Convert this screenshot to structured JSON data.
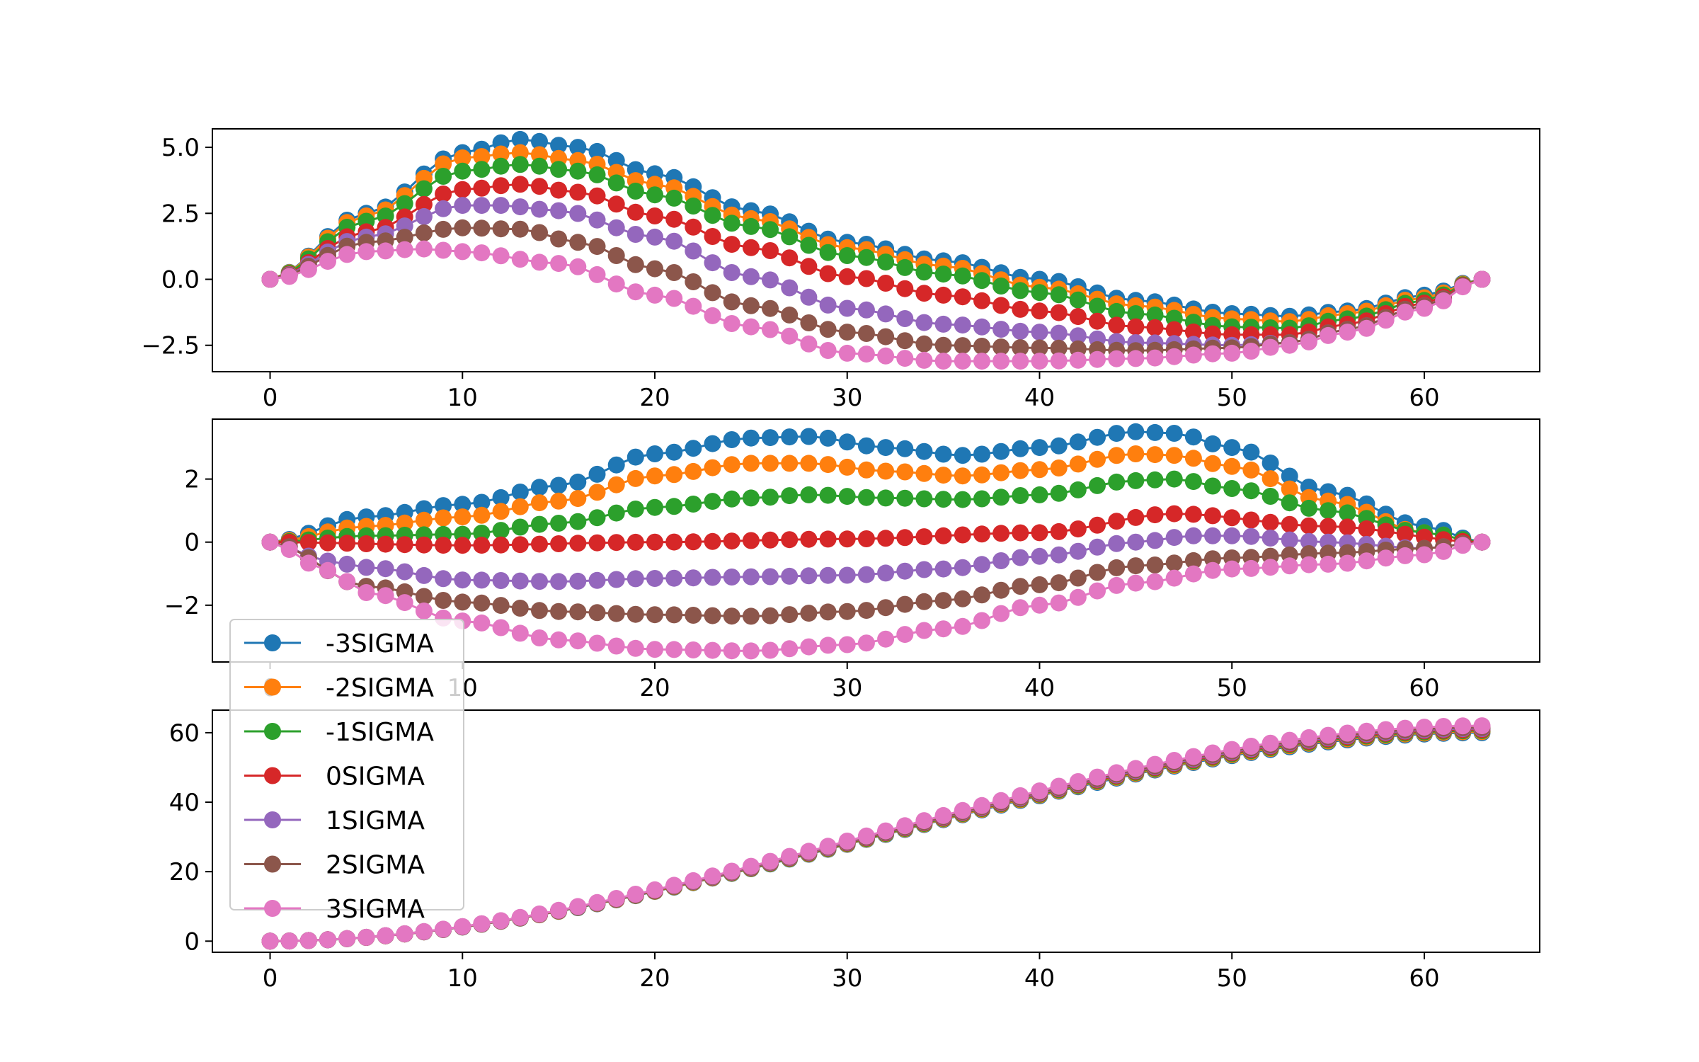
{
  "chart_data": [
    {
      "type": "line",
      "title": "",
      "xlabel": "",
      "ylabel": "",
      "xlim": [
        -3,
        66
      ],
      "ylim": [
        -3.5,
        5.7
      ],
      "xticks": [
        0,
        10,
        20,
        30,
        40,
        50,
        60
      ],
      "yticks": [
        -2.5,
        0.0,
        2.5,
        5.0
      ],
      "ytick_labels": [
        "−2.5",
        "0.0",
        "2.5",
        "5.0"
      ],
      "grid": false,
      "x": "0..63 (step 1)",
      "series": [
        {
          "name": "-3SIGMA",
          "color": "#1f77b4",
          "points": [
            [
              0,
              0
            ],
            [
              5,
              2.5
            ],
            [
              10,
              4.8
            ],
            [
              13,
              5.3
            ],
            [
              16,
              5.0
            ],
            [
              20,
              4.0
            ],
            [
              25,
              2.6
            ],
            [
              30,
              1.4
            ],
            [
              35,
              0.7
            ],
            [
              40,
              0.0
            ],
            [
              45,
              -0.8
            ],
            [
              50,
              -1.3
            ],
            [
              53,
              -1.4
            ],
            [
              56,
              -1.2
            ],
            [
              60,
              -0.6
            ],
            [
              63,
              0
            ]
          ]
        },
        {
          "name": "-2SIGMA",
          "color": "#ff7f0e",
          "points": [
            [
              0,
              0
            ],
            [
              5,
              2.4
            ],
            [
              10,
              4.6
            ],
            [
              13,
              4.8
            ],
            [
              16,
              4.5
            ],
            [
              20,
              3.6
            ],
            [
              25,
              2.3
            ],
            [
              30,
              1.2
            ],
            [
              35,
              0.5
            ],
            [
              40,
              -0.3
            ],
            [
              45,
              -1.0
            ],
            [
              50,
              -1.5
            ],
            [
              53,
              -1.6
            ],
            [
              56,
              -1.3
            ],
            [
              60,
              -0.7
            ],
            [
              63,
              0
            ]
          ]
        },
        {
          "name": "-1SIGMA",
          "color": "#2ca02c",
          "points": [
            [
              0,
              0
            ],
            [
              5,
              2.2
            ],
            [
              10,
              4.1
            ],
            [
              13,
              4.35
            ],
            [
              16,
              4.1
            ],
            [
              20,
              3.2
            ],
            [
              25,
              2.0
            ],
            [
              30,
              0.9
            ],
            [
              35,
              0.2
            ],
            [
              40,
              -0.5
            ],
            [
              45,
              -1.3
            ],
            [
              50,
              -1.8
            ],
            [
              53,
              -1.85
            ],
            [
              56,
              -1.5
            ],
            [
              60,
              -0.8
            ],
            [
              63,
              0
            ]
          ]
        },
        {
          "name": "0SIGMA",
          "color": "#d62728",
          "points": [
            [
              0,
              0
            ],
            [
              5,
              1.8
            ],
            [
              10,
              3.4
            ],
            [
              13,
              3.6
            ],
            [
              16,
              3.3
            ],
            [
              20,
              2.4
            ],
            [
              25,
              1.2
            ],
            [
              30,
              0.1
            ],
            [
              35,
              -0.6
            ],
            [
              40,
              -1.2
            ],
            [
              45,
              -1.8
            ],
            [
              50,
              -2.1
            ],
            [
              53,
              -2.1
            ],
            [
              56,
              -1.7
            ],
            [
              60,
              -0.9
            ],
            [
              63,
              0
            ]
          ]
        },
        {
          "name": "1SIGMA",
          "color": "#9467bd",
          "points": [
            [
              0,
              0
            ],
            [
              5,
              1.6
            ],
            [
              10,
              2.8
            ],
            [
              12,
              2.8
            ],
            [
              15,
              2.6
            ],
            [
              20,
              1.6
            ],
            [
              25,
              0.1
            ],
            [
              30,
              -1.1
            ],
            [
              35,
              -1.7
            ],
            [
              40,
              -2.0
            ],
            [
              45,
              -2.4
            ],
            [
              50,
              -2.5
            ],
            [
              53,
              -2.4
            ],
            [
              56,
              -1.9
            ],
            [
              60,
              -1.0
            ],
            [
              63,
              0
            ]
          ]
        },
        {
          "name": "2SIGMA",
          "color": "#8c564b",
          "points": [
            [
              0,
              0
            ],
            [
              5,
              1.4
            ],
            [
              10,
              1.95
            ],
            [
              13,
              1.9
            ],
            [
              16,
              1.4
            ],
            [
              20,
              0.4
            ],
            [
              25,
              -1.0
            ],
            [
              30,
              -2.0
            ],
            [
              35,
              -2.5
            ],
            [
              40,
              -2.6
            ],
            [
              45,
              -2.7
            ],
            [
              50,
              -2.6
            ],
            [
              53,
              -2.4
            ],
            [
              56,
              -1.9
            ],
            [
              60,
              -1.0
            ],
            [
              63,
              0
            ]
          ]
        },
        {
          "name": "3SIGMA",
          "color": "#e377c2",
          "points": [
            [
              0,
              0
            ],
            [
              5,
              1.05
            ],
            [
              8,
              1.15
            ],
            [
              10,
              1.05
            ],
            [
              15,
              0.6
            ],
            [
              20,
              -0.6
            ],
            [
              25,
              -1.8
            ],
            [
              30,
              -2.8
            ],
            [
              35,
              -3.1
            ],
            [
              40,
              -3.1
            ],
            [
              45,
              -3.0
            ],
            [
              50,
              -2.8
            ],
            [
              53,
              -2.5
            ],
            [
              56,
              -2.0
            ],
            [
              60,
              -1.1
            ],
            [
              63,
              0
            ]
          ]
        }
      ]
    },
    {
      "type": "line",
      "title": "",
      "xlabel": "",
      "ylabel": "",
      "xlim": [
        -3,
        66
      ],
      "ylim": [
        -3.8,
        3.9
      ],
      "xticks": [
        0,
        10,
        20,
        30,
        40,
        50,
        60
      ],
      "yticks": [
        -2,
        0,
        2
      ],
      "ytick_labels": [
        "−2",
        "0",
        "2"
      ],
      "grid": false,
      "x": "0..63 (step 1)",
      "series": [
        {
          "name": "-3SIGMA",
          "color": "#1f77b4",
          "points": [
            [
              0,
              0
            ],
            [
              5,
              0.8
            ],
            [
              10,
              1.2
            ],
            [
              15,
              1.8
            ],
            [
              20,
              2.8
            ],
            [
              25,
              3.3
            ],
            [
              28,
              3.35
            ],
            [
              32,
              3.0
            ],
            [
              36,
              2.75
            ],
            [
              40,
              3.0
            ],
            [
              45,
              3.5
            ],
            [
              47,
              3.45
            ],
            [
              50,
              3.0
            ],
            [
              55,
              1.6
            ],
            [
              60,
              0.5
            ],
            [
              63,
              0
            ]
          ]
        },
        {
          "name": "-2SIGMA",
          "color": "#ff7f0e",
          "points": [
            [
              0,
              0
            ],
            [
              5,
              0.5
            ],
            [
              10,
              0.8
            ],
            [
              15,
              1.3
            ],
            [
              20,
              2.1
            ],
            [
              25,
              2.5
            ],
            [
              28,
              2.5
            ],
            [
              32,
              2.25
            ],
            [
              36,
              2.1
            ],
            [
              40,
              2.3
            ],
            [
              45,
              2.8
            ],
            [
              47,
              2.75
            ],
            [
              50,
              2.4
            ],
            [
              55,
              1.3
            ],
            [
              60,
              0.3
            ],
            [
              63,
              0
            ]
          ]
        },
        {
          "name": "-1SIGMA",
          "color": "#2ca02c",
          "points": [
            [
              0,
              0
            ],
            [
              5,
              0.2
            ],
            [
              10,
              0.25
            ],
            [
              15,
              0.6
            ],
            [
              20,
              1.1
            ],
            [
              25,
              1.4
            ],
            [
              28,
              1.5
            ],
            [
              32,
              1.4
            ],
            [
              36,
              1.35
            ],
            [
              40,
              1.5
            ],
            [
              45,
              1.95
            ],
            [
              47,
              2.0
            ],
            [
              50,
              1.7
            ],
            [
              55,
              1.0
            ],
            [
              60,
              0.3
            ],
            [
              63,
              0
            ]
          ]
        },
        {
          "name": "0SIGMA",
          "color": "#d62728",
          "points": [
            [
              0,
              0
            ],
            [
              10,
              -0.1
            ],
            [
              20,
              0.0
            ],
            [
              30,
              0.1
            ],
            [
              40,
              0.3
            ],
            [
              47,
              0.9
            ],
            [
              55,
              0.5
            ],
            [
              63,
              0
            ]
          ]
        },
        {
          "name": "1SIGMA",
          "color": "#9467bd",
          "points": [
            [
              0,
              0
            ],
            [
              3,
              -0.6
            ],
            [
              5,
              -0.8
            ],
            [
              10,
              -1.2
            ],
            [
              15,
              -1.25
            ],
            [
              20,
              -1.15
            ],
            [
              25,
              -1.1
            ],
            [
              30,
              -1.05
            ],
            [
              35,
              -0.85
            ],
            [
              40,
              -0.45
            ],
            [
              45,
              0.0
            ],
            [
              48,
              0.2
            ],
            [
              50,
              0.2
            ],
            [
              55,
              0.0
            ],
            [
              60,
              -0.2
            ],
            [
              63,
              0
            ]
          ]
        },
        {
          "name": "2SIGMA",
          "color": "#8c564b",
          "points": [
            [
              0,
              0
            ],
            [
              5,
              -1.4
            ],
            [
              10,
              -1.9
            ],
            [
              15,
              -2.2
            ],
            [
              20,
              -2.3
            ],
            [
              25,
              -2.35
            ],
            [
              30,
              -2.2
            ],
            [
              35,
              -1.85
            ],
            [
              40,
              -1.35
            ],
            [
              45,
              -0.75
            ],
            [
              50,
              -0.5
            ],
            [
              55,
              -0.35
            ],
            [
              60,
              -0.2
            ],
            [
              63,
              0
            ]
          ]
        },
        {
          "name": "3SIGMA",
          "color": "#e377c2",
          "points": [
            [
              0,
              0
            ],
            [
              3,
              -0.9
            ],
            [
              5,
              -1.6
            ],
            [
              10,
              -2.5
            ],
            [
              15,
              -3.1
            ],
            [
              20,
              -3.4
            ],
            [
              25,
              -3.45
            ],
            [
              30,
              -3.25
            ],
            [
              35,
              -2.75
            ],
            [
              40,
              -2.0
            ],
            [
              45,
              -1.3
            ],
            [
              50,
              -0.85
            ],
            [
              55,
              -0.7
            ],
            [
              60,
              -0.4
            ],
            [
              63,
              0
            ]
          ]
        }
      ]
    },
    {
      "type": "line",
      "title": "",
      "xlabel": "",
      "ylabel": "",
      "xlim": [
        -3,
        66
      ],
      "ylim": [
        -3.2,
        66.5
      ],
      "xticks": [
        0,
        10,
        20,
        30,
        40,
        50,
        60
      ],
      "yticks": [
        0,
        20,
        40,
        60
      ],
      "ytick_labels": [
        "0",
        "20",
        "40",
        "60"
      ],
      "grid": false,
      "x": "0..63 (step 1)",
      "series": [
        {
          "name": "-3SIGMA",
          "color": "#1f77b4",
          "points": [
            [
              0,
              0
            ],
            [
              63,
              60.0
            ]
          ]
        },
        {
          "name": "-2SIGMA",
          "color": "#ff7f0e",
          "points": [
            [
              0,
              0
            ],
            [
              63,
              60.3
            ]
          ]
        },
        {
          "name": "-1SIGMA",
          "color": "#2ca02c",
          "points": [
            [
              0,
              0
            ],
            [
              63,
              60.6
            ]
          ]
        },
        {
          "name": "0SIGMA",
          "color": "#d62728",
          "points": [
            [
              0,
              0
            ],
            [
              63,
              60.9
            ]
          ]
        },
        {
          "name": "1SIGMA",
          "color": "#9467bd",
          "points": [
            [
              0,
              0
            ],
            [
              63,
              61.2
            ]
          ]
        },
        {
          "name": "2SIGMA",
          "color": "#8c564b",
          "points": [
            [
              0,
              0
            ],
            [
              63,
              61.5
            ]
          ]
        },
        {
          "name": "3SIGMA",
          "color": "#e377c2",
          "points": [
            [
              0,
              0
            ],
            [
              63,
              62.0
            ]
          ]
        }
      ]
    }
  ],
  "legend": {
    "placement": "lower-left",
    "entries": [
      {
        "label": "-3SIGMA",
        "color": "#1f77b4"
      },
      {
        "label": "-2SIGMA",
        "color": "#ff7f0e"
      },
      {
        "label": "-1SIGMA",
        "color": "#2ca02c"
      },
      {
        "label": "0SIGMA",
        "color": "#d62728"
      },
      {
        "label": "1SIGMA",
        "color": "#9467bd"
      },
      {
        "label": "2SIGMA",
        "color": "#8c564b"
      },
      {
        "label": "3SIGMA",
        "color": "#e377c2"
      }
    ]
  }
}
